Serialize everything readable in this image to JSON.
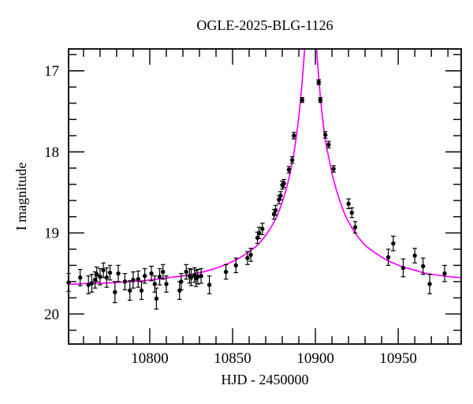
{
  "chart_data": {
    "type": "scatter",
    "title": "OGLE-2025-BLG-1126",
    "xlabel": "HJD - 2450000",
    "ylabel": "I magnitude",
    "xlim": [
      10751,
      10988
    ],
    "ylim": [
      20.37,
      16.73
    ],
    "x_major_ticks": [
      10800,
      10850,
      10900,
      10950
    ],
    "x_minor_tick_step": 10,
    "y_major_ticks": [
      17,
      18,
      19,
      20
    ],
    "y_minor_tick_step": 0.2,
    "grid": false,
    "legend": false,
    "frame": "box-with-inward-ticks",
    "colors": {
      "model": "#ff00ff",
      "data": "#000000",
      "axes": "#000000",
      "background": "#ffffff"
    },
    "series": [
      {
        "name": "OGLE I-band photometry",
        "type": "scatter",
        "marker": "filled-circle-with-errorbars",
        "points": [
          [
            10751,
            19.61,
            0.11
          ],
          [
            10758,
            19.55,
            0.1
          ],
          [
            10763,
            19.64,
            0.11
          ],
          [
            10765,
            19.62,
            0.11
          ],
          [
            10767,
            19.58,
            0.1
          ],
          [
            10768,
            19.51,
            0.09
          ],
          [
            10770,
            19.54,
            0.1
          ],
          [
            10772,
            19.46,
            0.09
          ],
          [
            10774,
            19.55,
            0.12
          ],
          [
            10776,
            19.49,
            0.09
          ],
          [
            10779,
            19.73,
            0.13
          ],
          [
            10781,
            19.5,
            0.1
          ],
          [
            10785,
            19.6,
            0.1
          ],
          [
            10788,
            19.71,
            0.12
          ],
          [
            10790,
            19.58,
            0.1
          ],
          [
            10793,
            19.57,
            0.1
          ],
          [
            10795,
            19.71,
            0.11
          ],
          [
            10797,
            19.53,
            0.09
          ],
          [
            10801,
            19.5,
            0.09
          ],
          [
            10803,
            19.63,
            0.1
          ],
          [
            10804,
            19.81,
            0.13
          ],
          [
            10806,
            19.54,
            0.1
          ],
          [
            10808,
            19.48,
            0.09
          ],
          [
            10810,
            19.63,
            0.1
          ],
          [
            10818,
            19.71,
            0.11
          ],
          [
            10819,
            19.6,
            0.1
          ],
          [
            10822,
            19.48,
            0.09
          ],
          [
            10824,
            19.53,
            0.09
          ],
          [
            10825,
            19.55,
            0.1
          ],
          [
            10827,
            19.52,
            0.09
          ],
          [
            10828,
            19.56,
            0.1
          ],
          [
            10829,
            19.54,
            0.09
          ],
          [
            10831,
            19.53,
            0.09
          ],
          [
            10836,
            19.64,
            0.11
          ],
          [
            10846,
            19.48,
            0.09
          ],
          [
            10852,
            19.4,
            0.09
          ],
          [
            10859,
            19.31,
            0.08
          ],
          [
            10861,
            19.27,
            0.08
          ],
          [
            10865,
            19.06,
            0.07
          ],
          [
            10866,
            19.0,
            0.07
          ],
          [
            10868,
            18.95,
            0.07
          ],
          [
            10875,
            18.77,
            0.06
          ],
          [
            10876,
            18.72,
            0.06
          ],
          [
            10878,
            18.59,
            0.05
          ],
          [
            10879,
            18.54,
            0.05
          ],
          [
            10880,
            18.41,
            0.05
          ],
          [
            10881,
            18.39,
            0.05
          ],
          [
            10884,
            18.22,
            0.04
          ],
          [
            10886,
            18.1,
            0.04
          ],
          [
            10887,
            17.8,
            0.04
          ],
          [
            10892,
            17.36,
            0.03
          ],
          [
            10902,
            17.14,
            0.03
          ],
          [
            10903,
            17.36,
            0.03
          ],
          [
            10906,
            17.79,
            0.04
          ],
          [
            10908,
            17.91,
            0.04
          ],
          [
            10911,
            18.21,
            0.04
          ],
          [
            10920,
            18.64,
            0.06
          ],
          [
            10922,
            18.75,
            0.06
          ],
          [
            10924,
            18.93,
            0.07
          ],
          [
            10944,
            19.3,
            0.1
          ],
          [
            10947,
            19.13,
            0.09
          ],
          [
            10953,
            19.43,
            0.11
          ],
          [
            10960,
            19.28,
            0.09
          ],
          [
            10965,
            19.41,
            0.1
          ],
          [
            10969,
            19.63,
            0.12
          ],
          [
            10978,
            19.5,
            0.1
          ]
        ]
      },
      {
        "name": "microlensing model curve",
        "type": "line",
        "points": [
          [
            10748,
            19.63
          ],
          [
            10756,
            19.63
          ],
          [
            10764,
            19.62
          ],
          [
            10772,
            19.62
          ],
          [
            10780,
            19.61
          ],
          [
            10788,
            19.6
          ],
          [
            10796,
            19.59
          ],
          [
            10804,
            19.57
          ],
          [
            10812,
            19.55
          ],
          [
            10820,
            19.53
          ],
          [
            10828,
            19.5
          ],
          [
            10836,
            19.46
          ],
          [
            10842,
            19.42
          ],
          [
            10848,
            19.37
          ],
          [
            10854,
            19.31
          ],
          [
            10860,
            19.23
          ],
          [
            10865,
            19.15
          ],
          [
            10870,
            19.03
          ],
          [
            10874,
            18.9
          ],
          [
            10877,
            18.78
          ],
          [
            10880,
            18.62
          ],
          [
            10882.5,
            18.45
          ],
          [
            10884.5,
            18.28
          ],
          [
            10886.5,
            18.08
          ],
          [
            10888,
            17.88
          ],
          [
            10889.5,
            17.65
          ],
          [
            10890.8,
            17.4
          ],
          [
            10891.8,
            17.18
          ],
          [
            10892.8,
            16.92
          ],
          [
            10893.6,
            16.7
          ],
          [
            10894.2,
            16.5
          ],
          [
            10900.0,
            16.5
          ],
          [
            10900.6,
            16.7
          ],
          [
            10901.4,
            16.92
          ],
          [
            10902.4,
            17.18
          ],
          [
            10903.4,
            17.4
          ],
          [
            10904.7,
            17.65
          ],
          [
            10906.2,
            17.88
          ],
          [
            10908.2,
            18.08
          ],
          [
            10910.2,
            18.28
          ],
          [
            10912.4,
            18.45
          ],
          [
            10915,
            18.62
          ],
          [
            10918,
            18.78
          ],
          [
            10921,
            18.9
          ],
          [
            10925,
            19.03
          ],
          [
            10930,
            19.15
          ],
          [
            10935,
            19.23
          ],
          [
            10941,
            19.31
          ],
          [
            10947,
            19.37
          ],
          [
            10953,
            19.42
          ],
          [
            10960,
            19.46
          ],
          [
            10967,
            19.5
          ],
          [
            10974,
            19.52
          ],
          [
            10981,
            19.54
          ],
          [
            10988,
            19.55
          ]
        ]
      }
    ]
  }
}
